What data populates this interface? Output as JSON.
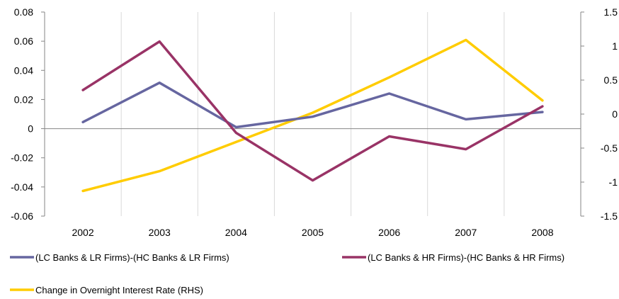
{
  "chart_data": {
    "type": "line",
    "categories": [
      "2002",
      "2003",
      "2004",
      "2005",
      "2006",
      "2007",
      "2008"
    ],
    "y_left": {
      "ylim": [
        -0.06,
        0.08
      ],
      "ticks": [
        -0.06,
        -0.04,
        -0.02,
        0,
        0.02,
        0.04,
        0.06,
        0.08
      ],
      "tick_labels": [
        "-0.06",
        "-0.04",
        "-0.02",
        "0",
        "0.02",
        "0.04",
        "0.06",
        "0.08"
      ]
    },
    "y_right": {
      "ylim": [
        -1.5,
        1.5
      ],
      "ticks": [
        -1.5,
        -1,
        -0.5,
        0,
        0.5,
        1,
        1.5
      ],
      "tick_labels": [
        "-1.5",
        "-1",
        "-0.5",
        "0",
        "0.5",
        "1",
        "1.5"
      ]
    },
    "grid": "vertical",
    "legend_position": "bottom",
    "series": [
      {
        "name": "(LC Banks & LR Firms)-(HC Banks & LR Firms)",
        "axis": "left",
        "color": "#6666a0",
        "values": [
          0.0045,
          0.0315,
          0.001,
          0.0082,
          0.0241,
          0.0064,
          0.0114
        ]
      },
      {
        "name": "(LC Banks & HR Firms)-(HC Banks & HR Firms)",
        "axis": "left",
        "color": "#993366",
        "values": [
          0.0265,
          0.0598,
          -0.0029,
          -0.0355,
          -0.0053,
          -0.0141,
          0.0153
        ]
      },
      {
        "name": "Change in Overnight Interest Rate (RHS)",
        "axis": "right",
        "color": "#ffcc00",
        "values": [
          -1.13,
          -0.84,
          -0.41,
          0.02,
          0.54,
          1.09,
          0.2
        ]
      }
    ]
  }
}
